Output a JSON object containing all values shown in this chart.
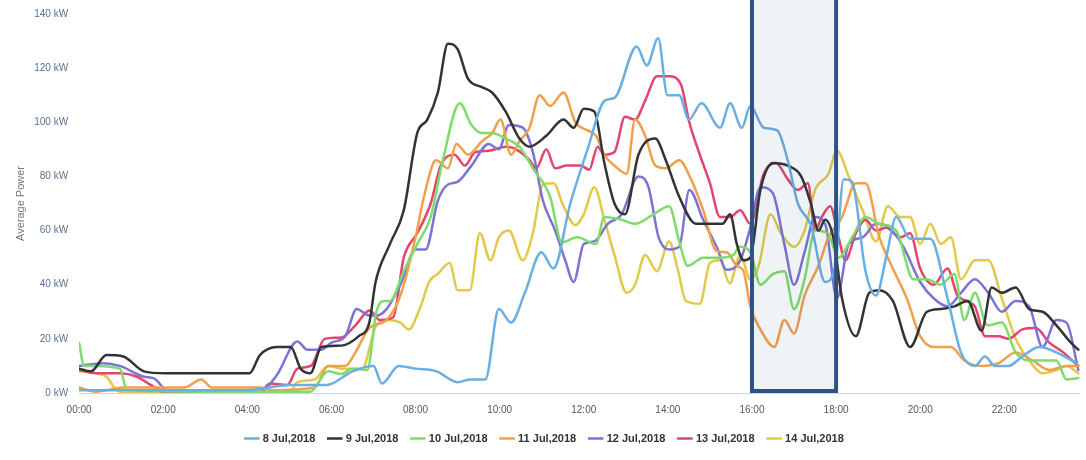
{
  "chart_data": {
    "type": "line",
    "ylabel": "Average Power",
    "xlim": [
      0,
      23.8
    ],
    "ylim": [
      0,
      140
    ],
    "xticks": [
      {
        "value": 0,
        "label": "00:00"
      },
      {
        "value": 2,
        "label": "02:00"
      },
      {
        "value": 4,
        "label": "04:00"
      },
      {
        "value": 6,
        "label": "06:00"
      },
      {
        "value": 8,
        "label": "08:00"
      },
      {
        "value": 10,
        "label": "10:00"
      },
      {
        "value": 12,
        "label": "12:00"
      },
      {
        "value": 14,
        "label": "14:00"
      },
      {
        "value": 16,
        "label": "16:00"
      },
      {
        "value": 18,
        "label": "18:00"
      },
      {
        "value": 20,
        "label": "20:00"
      },
      {
        "value": 22,
        "label": "22:00"
      }
    ],
    "yticks": [
      {
        "value": 0,
        "label": "0 kW"
      },
      {
        "value": 20,
        "label": "20 kW"
      },
      {
        "value": 40,
        "label": "40 kW"
      },
      {
        "value": 60,
        "label": "60 kW"
      },
      {
        "value": 80,
        "label": "80 kW"
      },
      {
        "value": 100,
        "label": "100 kW"
      },
      {
        "value": 120,
        "label": "120 kW"
      },
      {
        "value": 140,
        "label": "140 kW"
      }
    ],
    "grid": false,
    "legend": "bottom",
    "marker": "none",
    "line_style": "solid",
    "bands": [
      {
        "axis": "x",
        "from": 16,
        "to": 18,
        "color": "#2f5283"
      }
    ],
    "series": [
      {
        "name": "8 Jul,2018",
        "color": "#6aaee4",
        "x": [
          0,
          2,
          4,
          5,
          5.9,
          6.5,
          7,
          7.2,
          7.6,
          8,
          8.5,
          9,
          9.3,
          9.66,
          9.98,
          10.27,
          10.6,
          10.99,
          11.28,
          11.68,
          12.09,
          12.5,
          12.73,
          13.26,
          13.5,
          13.77,
          13.99,
          14.27,
          14.5,
          14.8,
          15.24,
          15.48,
          15.76,
          15.96,
          16.28,
          16.6,
          16.85,
          17.09,
          17.4,
          17.74,
          17.98,
          18.18,
          18.38,
          18.7,
          18.95,
          19.19,
          19.43,
          19.76,
          20.24,
          20.65,
          20.97,
          21.3,
          21.54,
          21.78,
          22.1,
          22.43,
          22.83,
          23.24,
          23.72
        ],
        "values": [
          1,
          1,
          1,
          3,
          3,
          8,
          10,
          3.5,
          10,
          9,
          8,
          4,
          5,
          5,
          31,
          26,
          37,
          52,
          46,
          70,
          90,
          108,
          109,
          128,
          121,
          131,
          110,
          110,
          101,
          107,
          98,
          107,
          98,
          106,
          98,
          97,
          86,
          70,
          62,
          41,
          47,
          79,
          78,
          45,
          36,
          50,
          65,
          57,
          57,
          35,
          15,
          10,
          13.5,
          10,
          10,
          13.5,
          17,
          15,
          11
        ]
      },
      {
        "name": "9 Jul,2018",
        "color": "#333333",
        "x": [
          0,
          0.28,
          0.65,
          1.05,
          1.54,
          2.03,
          3.8,
          4.05,
          4.3,
          4.7,
          5.03,
          5.27,
          5.5,
          5.76,
          6.24,
          6.65,
          6.9,
          7.05,
          7.39,
          7.72,
          8.04,
          8.28,
          8.53,
          8.77,
          9,
          9.25,
          9.58,
          9.82,
          10.14,
          10.47,
          10.71,
          11.11,
          11.52,
          11.76,
          12,
          12.25,
          12.49,
          12.73,
          12.98,
          13.3,
          13.7,
          13.95,
          14.27,
          14.67,
          15,
          15.3,
          15.48,
          15.64,
          15.8,
          15.96,
          16.2,
          16.5,
          16.85,
          17.17,
          17.4,
          17.58,
          17.74,
          17.94,
          18.14,
          18.47,
          18.79,
          19.03,
          19.35,
          19.76,
          20.16,
          20.49,
          20.81,
          21.13,
          21.46,
          21.7,
          21.94,
          22.27,
          22.59,
          22.91,
          23.24,
          23.56,
          23.76
        ],
        "values": [
          9,
          8,
          14,
          13.5,
          8,
          7.3,
          7.3,
          7.3,
          14,
          17,
          17,
          9,
          7.3,
          17,
          17.5,
          21,
          26,
          41,
          55,
          67.5,
          96,
          101,
          111,
          129,
          127,
          116,
          113,
          111,
          104,
          94,
          91,
          95,
          101,
          98,
          105,
          104,
          85,
          70,
          66,
          88,
          94,
          86,
          72.5,
          62.5,
          62.5,
          62.5,
          66,
          55,
          49,
          50,
          75,
          85,
          84,
          80,
          70,
          60,
          64,
          57,
          35,
          21,
          37,
          38,
          34,
          17,
          30,
          31,
          32,
          34,
          23,
          39,
          37,
          39,
          31,
          30,
          25,
          19,
          16
        ]
      },
      {
        "name": "10 Jul,2018",
        "color": "#7ddc6a",
        "x": [
          0,
          0.12,
          0.4,
          0.97,
          1.14,
          3,
          5.5,
          5.92,
          6.24,
          6.49,
          6.85,
          7.07,
          7.26,
          7.39,
          7.72,
          8.04,
          8.36,
          8.65,
          9.05,
          9.33,
          9.58,
          9.82,
          10.14,
          10.47,
          10.79,
          11.2,
          11.48,
          11.84,
          12.29,
          12.49,
          12.9,
          13.22,
          13.62,
          14.03,
          14.27,
          14.47,
          14.84,
          15.24,
          15.56,
          15.7,
          15.96,
          16.2,
          16.5,
          16.77,
          17,
          17.25,
          17.5,
          17.8,
          18.06,
          18.38,
          18.7,
          19.03,
          19.43,
          19.84,
          20.16,
          20.49,
          20.81,
          21.05,
          21.3,
          21.6,
          21.94,
          22.27,
          22.59,
          22.91,
          23.24,
          23.48,
          23.76
        ],
        "values": [
          18.5,
          10,
          10,
          9,
          1,
          0.5,
          0.5,
          8,
          7,
          9,
          8.5,
          30,
          34,
          34,
          45,
          55,
          65,
          86,
          107,
          99,
          96,
          96,
          94,
          91,
          83,
          72.5,
          55.6,
          57.5,
          55,
          65,
          64,
          62.5,
          65.6,
          69,
          56,
          47,
          50,
          50,
          51,
          54,
          52,
          40,
          44,
          45,
          31,
          42,
          60,
          59,
          50,
          57.5,
          65,
          62.5,
          60,
          42,
          42,
          40,
          44,
          27,
          37,
          25,
          26,
          15,
          12,
          12,
          12,
          5,
          5.5
        ]
      },
      {
        "name": "11 Jul,2018",
        "color": "#f0a04b",
        "x": [
          0,
          0.4,
          1.05,
          2.5,
          2.9,
          3.16,
          4.3,
          4.6,
          5.6,
          5.92,
          6.33,
          6.57,
          6.9,
          7.31,
          7.64,
          8,
          8.2,
          8.49,
          8.77,
          8.97,
          9.25,
          9.58,
          9.82,
          10.02,
          10.27,
          10.47,
          10.71,
          10.95,
          11.2,
          11.52,
          11.8,
          12.09,
          12.29,
          12.49,
          12.73,
          13.02,
          13.22,
          13.46,
          13.7,
          13.95,
          14.27,
          14.55,
          14.84,
          15.16,
          15.4,
          15.64,
          15.8,
          15.96,
          16.2,
          16.53,
          16.77,
          17,
          17.25,
          17.58,
          17.82,
          18.14,
          18.47,
          18.7,
          19.03,
          19.35,
          19.68,
          20,
          20.32,
          20.73,
          21.05,
          21.46,
          21.86,
          22.27,
          22.67,
          23.07,
          23.48,
          23.76
        ],
        "values": [
          2,
          0.5,
          2,
          2,
          5,
          2,
          2,
          1,
          2,
          10,
          10,
          15,
          24,
          27,
          36,
          57.5,
          72.5,
          86,
          83,
          92,
          88,
          93,
          96,
          101,
          88,
          93,
          98,
          110,
          106,
          111,
          100,
          97,
          95,
          88,
          84,
          81,
          101,
          95,
          84,
          83,
          86,
          79,
          67.5,
          52.4,
          52,
          47,
          45,
          32,
          23.5,
          17,
          27,
          22,
          36,
          47,
          57.5,
          65,
          77.5,
          77.5,
          57.5,
          46,
          35,
          21,
          17,
          17,
          12,
          10,
          11,
          15,
          12,
          8.5,
          10,
          10
        ]
      },
      {
        "name": "12 Jul,2018",
        "color": "#7b74d6",
        "x": [
          0,
          0.57,
          0.97,
          1.54,
          1.78,
          2.1,
          3.8,
          4.3,
          4.7,
          5.19,
          5.43,
          5.76,
          6,
          6.33,
          6.6,
          6.9,
          7.07,
          7.31,
          7.64,
          8,
          8.24,
          8.53,
          8.77,
          9,
          9.33,
          9.74,
          9.98,
          10.22,
          10.55,
          10.79,
          11.03,
          11.32,
          11.56,
          11.76,
          12,
          12.25,
          12.57,
          12.9,
          13.3,
          13.54,
          13.78,
          14.03,
          14.27,
          14.51,
          14.84,
          15.16,
          15.4,
          15.72,
          15.96,
          16.2,
          16.49,
          16.77,
          17,
          17.25,
          17.5,
          17.74,
          18.02,
          18.3,
          18.63,
          18.95,
          19.27,
          19.6,
          20,
          20.32,
          20.65,
          20.97,
          21.3,
          21.62,
          21.94,
          22.27,
          22.59,
          22.91,
          23.24,
          23.48,
          23.76
        ],
        "values": [
          10,
          11,
          10,
          6,
          5.4,
          1,
          0.4,
          0.4,
          6.6,
          19,
          16,
          16,
          18.6,
          21,
          31,
          28.6,
          28.6,
          31,
          40,
          53,
          53,
          71,
          77,
          78,
          84,
          92,
          90,
          99,
          98,
          89,
          71,
          60,
          49,
          41,
          55,
          56,
          62.5,
          66,
          80,
          76,
          57.5,
          53,
          54,
          75,
          64,
          54,
          45.5,
          49,
          61,
          76,
          74,
          55,
          40,
          52,
          65,
          62.5,
          35,
          55,
          57.5,
          62.5,
          61,
          54,
          41,
          35,
          32,
          37,
          42,
          37,
          30,
          34,
          32,
          17,
          27,
          26,
          8.5
        ]
      },
      {
        "name": "13 Jul,2018",
        "color": "#e3456e",
        "x": [
          0,
          0.4,
          0.97,
          1.38,
          1.7,
          2.03,
          4.3,
          4.54,
          4.95,
          5.19,
          5.51,
          5.84,
          6.24,
          6.57,
          6.91,
          7.15,
          7.47,
          7.72,
          8.04,
          8.36,
          8.6,
          8.93,
          9.17,
          9.42,
          9.74,
          10.14,
          10.39,
          10.71,
          10.87,
          11.11,
          11.32,
          11.6,
          11.92,
          12.13,
          12.33,
          12.49,
          12.73,
          12.98,
          13.22,
          13.46,
          13.74,
          14.03,
          14.31,
          14.51,
          14.76,
          15,
          15.24,
          15.48,
          15.72,
          15.96,
          16.28,
          16.57,
          16.85,
          17.09,
          17.33,
          17.5,
          17.66,
          17.86,
          18.06,
          18.22,
          18.47,
          18.7,
          18.95,
          19.19,
          19.52,
          19.76,
          20,
          20.32,
          20.65,
          20.89,
          21.3,
          21.54,
          21.86,
          22.1,
          22.43,
          22.75,
          23.07,
          23.4,
          23.76
        ],
        "values": [
          8.5,
          7.3,
          7.3,
          6,
          3,
          0.4,
          0.4,
          3.5,
          3,
          9,
          10,
          20,
          20.5,
          25,
          30.5,
          27,
          28,
          50,
          59,
          70,
          84,
          88,
          84,
          89,
          89.5,
          91,
          90,
          86,
          83,
          90,
          83,
          84,
          84,
          82.5,
          91,
          88,
          89,
          102,
          101,
          108,
          117,
          117,
          114,
          100,
          88,
          77.5,
          65,
          65,
          67.5,
          62.5,
          81,
          85,
          79,
          75,
          77.5,
          60,
          65,
          69,
          57.5,
          49,
          59,
          64,
          60,
          61,
          57.5,
          59,
          46,
          40,
          46,
          36,
          32,
          21,
          21,
          20,
          23.5,
          24,
          18.6,
          15,
          10
        ]
      },
      {
        "name": "14 Jul,2018",
        "color": "#e2c94a",
        "x": [
          0,
          0.4,
          0.65,
          0.9,
          1.2,
          5,
          5.19,
          5.6,
          5.92,
          6.24,
          6.73,
          7.07,
          7.39,
          7.64,
          7.84,
          8.12,
          8.32,
          8.53,
          8.81,
          9,
          9.29,
          9.53,
          9.78,
          9.98,
          10.22,
          10.55,
          10.79,
          11.03,
          11.28,
          11.52,
          11.8,
          12,
          12.25,
          12.49,
          12.73,
          13.02,
          13.22,
          13.46,
          13.74,
          14.03,
          14.23,
          14.43,
          14.76,
          15,
          15.24,
          15.47,
          15.72,
          15.96,
          16.16,
          16.44,
          16.69,
          17,
          17.25,
          17.5,
          17.82,
          18.02,
          18.3,
          18.63,
          18.95,
          19.23,
          19.52,
          19.76,
          20,
          20.24,
          20.49,
          20.73,
          20.97,
          21.3,
          21.62,
          21.94,
          22.27,
          22.59,
          22.91,
          23.24,
          23.48,
          23.76
        ],
        "values": [
          8,
          7.3,
          6,
          1,
          0,
          0,
          4,
          5,
          10,
          9,
          9,
          25,
          27,
          26,
          23.5,
          32,
          41,
          44,
          48,
          38,
          38,
          59,
          49,
          57.5,
          60,
          49,
          59,
          77,
          77.5,
          69,
          62,
          66,
          76,
          64,
          51,
          37,
          40,
          51,
          45,
          56,
          46,
          34,
          33,
          48,
          49,
          40.5,
          51,
          42,
          47,
          66,
          59,
          54,
          60,
          75,
          81,
          89.5,
          80,
          67.5,
          56,
          69,
          65,
          65,
          55,
          62.5,
          55,
          57.5,
          42,
          49,
          49,
          35,
          20,
          12,
          7.3,
          8.5,
          10,
          7.3
        ]
      }
    ]
  }
}
